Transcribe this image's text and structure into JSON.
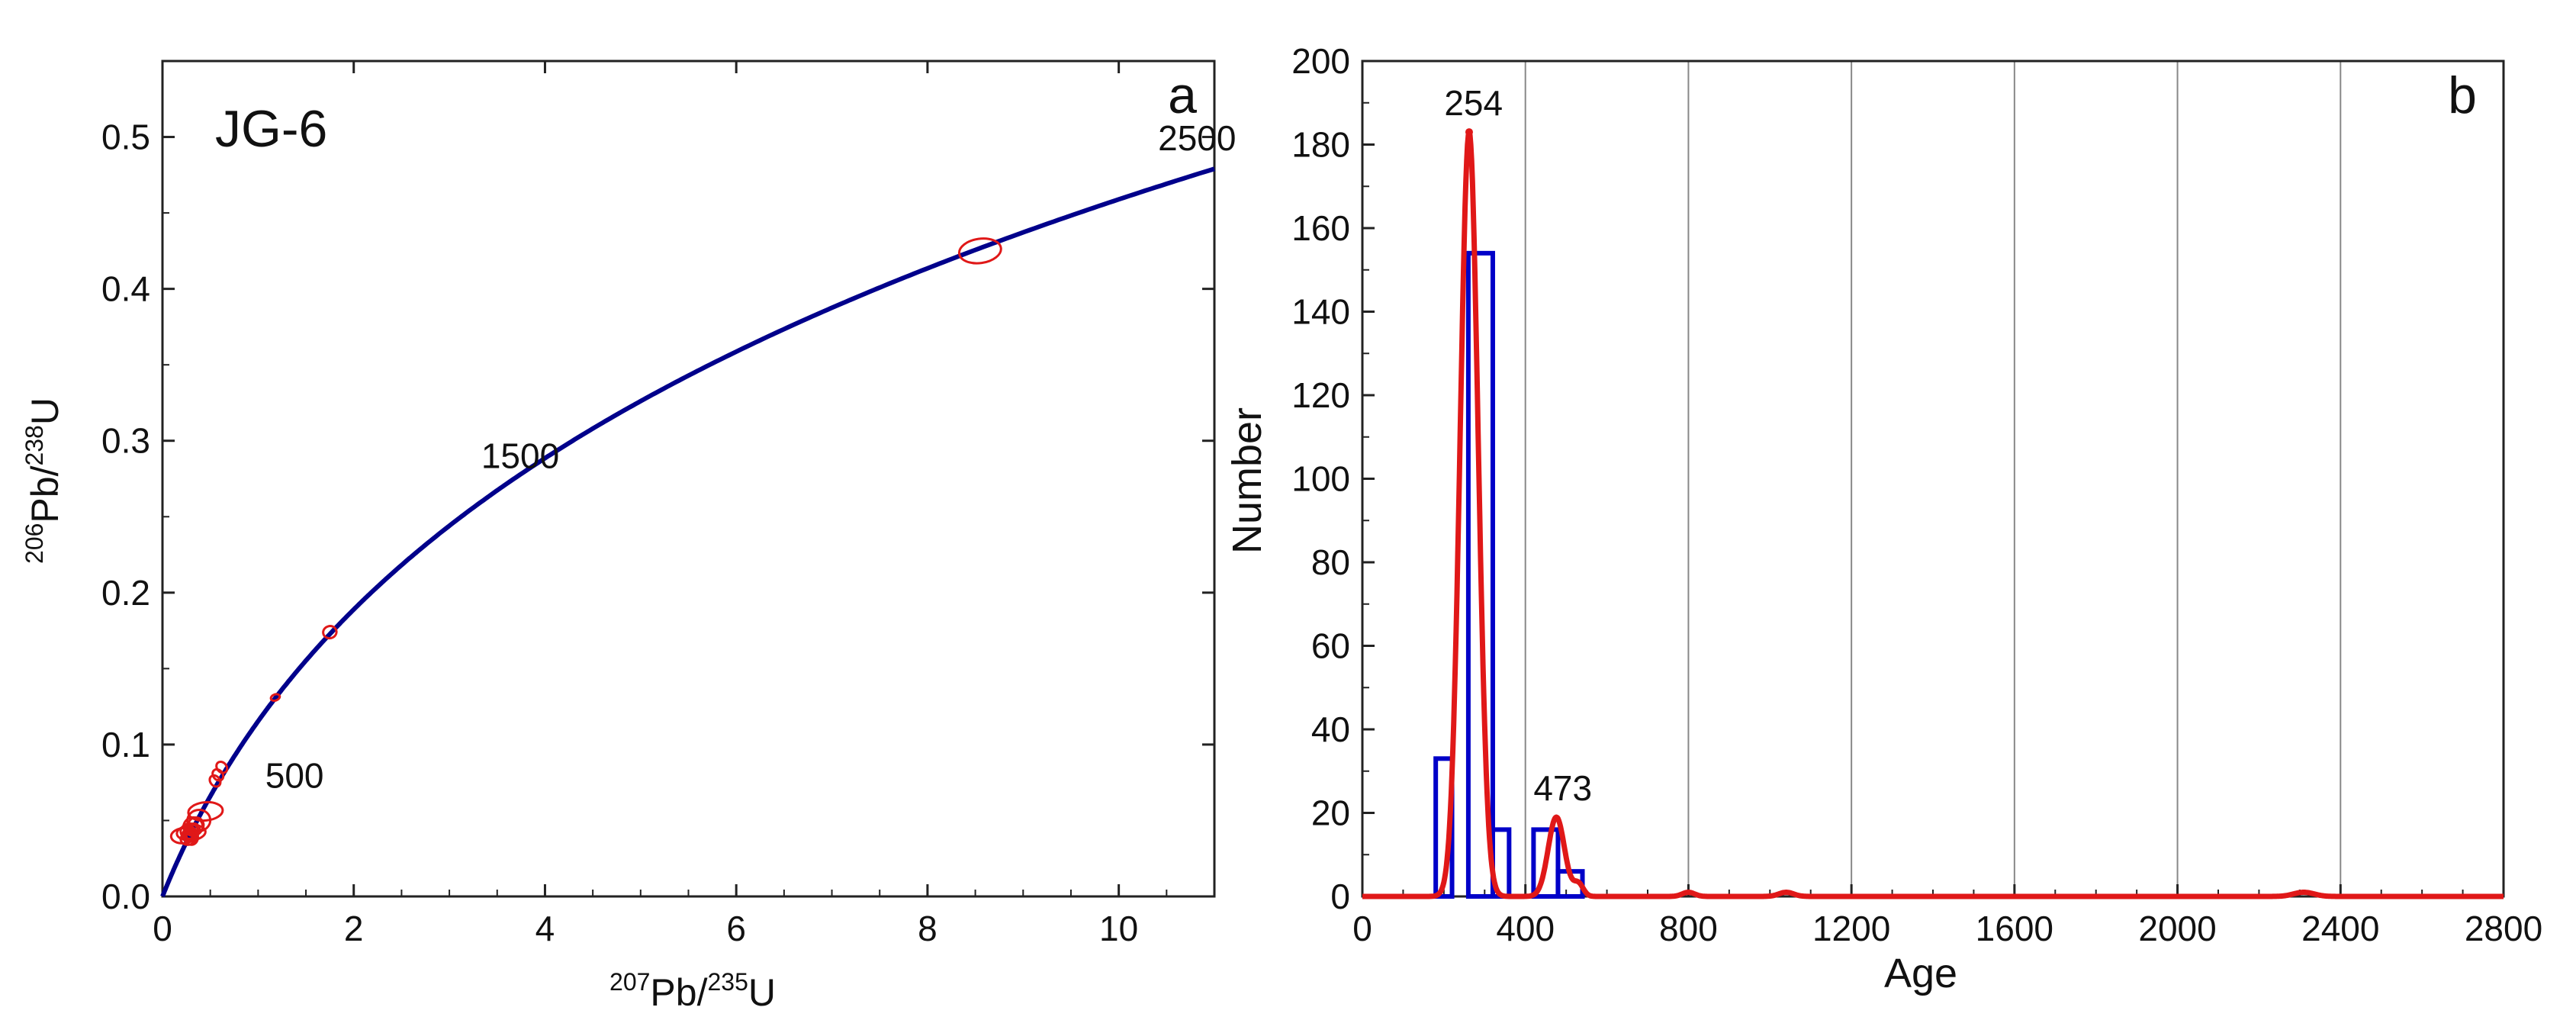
{
  "chart_data": [
    {
      "type": "scatter",
      "panel_label": "a",
      "sample_label": "JG-6",
      "xlabel": {
        "sup1": "207",
        "base1": "Pb/",
        "sup2": "235",
        "base2": "U"
      },
      "ylabel": {
        "sup1": "206",
        "base1": "Pb/",
        "sup2": "238",
        "base2": "U"
      },
      "xlim": [
        0,
        11
      ],
      "ylim": [
        0,
        0.55
      ],
      "xticks": [
        0,
        2,
        4,
        6,
        8,
        10
      ],
      "yticks": [
        0.0,
        0.1,
        0.2,
        0.3,
        0.4,
        0.5
      ],
      "ytick_labels": [
        "0.0",
        "0.1",
        "0.2",
        "0.3",
        "0.4",
        "0.5"
      ],
      "concordia_age_labels": [
        {
          "age_ma": 500,
          "text": "500"
        },
        {
          "age_ma": 1500,
          "text": "1500"
        },
        {
          "age_ma": 2500,
          "text": "2500"
        }
      ],
      "ellipses": [
        {
          "x": 8.55,
          "y": 0.425,
          "rx": 0.22,
          "ry": 0.008,
          "angle": 8
        },
        {
          "x": 1.75,
          "y": 0.174,
          "rx": 0.07,
          "ry": 0.004,
          "angle": 15
        },
        {
          "x": 1.18,
          "y": 0.131,
          "rx": 0.04,
          "ry": 0.002,
          "angle": 20
        },
        {
          "x": 0.62,
          "y": 0.085,
          "rx": 0.05,
          "ry": 0.004,
          "angle": 40
        },
        {
          "x": 0.58,
          "y": 0.08,
          "rx": 0.05,
          "ry": 0.004,
          "angle": 40
        },
        {
          "x": 0.55,
          "y": 0.076,
          "rx": 0.05,
          "ry": 0.004,
          "angle": 40
        },
        {
          "x": 0.45,
          "y": 0.056,
          "rx": 0.18,
          "ry": 0.006,
          "angle": 5
        },
        {
          "x": 0.38,
          "y": 0.05,
          "rx": 0.12,
          "ry": 0.007,
          "angle": 10
        },
        {
          "x": 0.32,
          "y": 0.046,
          "rx": 0.1,
          "ry": 0.006,
          "angle": 10
        },
        {
          "x": 0.3,
          "y": 0.042,
          "rx": 0.15,
          "ry": 0.005,
          "angle": 5
        },
        {
          "x": 0.22,
          "y": 0.04,
          "rx": 0.13,
          "ry": 0.005,
          "angle": 5
        },
        {
          "x": 0.29,
          "y": 0.041,
          "rx": 0.07,
          "ry": 0.005,
          "angle": 10
        },
        {
          "x": 0.3,
          "y": 0.039,
          "rx": 0.07,
          "ry": 0.005,
          "angle": 10
        },
        {
          "x": 0.28,
          "y": 0.043,
          "rx": 0.09,
          "ry": 0.005,
          "angle": 10
        },
        {
          "x": 0.31,
          "y": 0.04,
          "rx": 0.06,
          "ry": 0.004,
          "angle": 10
        },
        {
          "x": 0.27,
          "y": 0.038,
          "rx": 0.08,
          "ry": 0.004,
          "angle": 10
        },
        {
          "x": 0.33,
          "y": 0.044,
          "rx": 0.06,
          "ry": 0.004,
          "angle": 10
        },
        {
          "x": 0.26,
          "y": 0.04,
          "rx": 0.05,
          "ry": 0.004,
          "angle": 10
        },
        {
          "x": 0.35,
          "y": 0.047,
          "rx": 0.08,
          "ry": 0.005,
          "angle": 10
        }
      ],
      "colors": {
        "concordia": "#00008b",
        "ellipse": "#e01818"
      }
    },
    {
      "type": "bar",
      "panel_label": "b",
      "xlabel": "Age",
      "ylabel": "Number",
      "xlim": [
        0,
        2800
      ],
      "ylim": [
        0,
        200
      ],
      "xticks": [
        0,
        400,
        800,
        1200,
        1600,
        2000,
        2400,
        2800
      ],
      "yticks": [
        0,
        20,
        40,
        60,
        80,
        100,
        120,
        140,
        160,
        180,
        200
      ],
      "vgrid": [
        400,
        800,
        1200,
        1600,
        2000,
        2400
      ],
      "bins": [
        {
          "x0": 180,
          "x1": 220,
          "count": 33
        },
        {
          "x0": 220,
          "x1": 260,
          "count": 0
        },
        {
          "x0": 260,
          "x1": 320,
          "count": 154
        },
        {
          "x0": 320,
          "x1": 360,
          "count": 16
        },
        {
          "x0": 420,
          "x1": 480,
          "count": 16
        },
        {
          "x0": 480,
          "x1": 540,
          "count": 6
        }
      ],
      "density_peaks": [
        {
          "mu": 262,
          "sigma": 22,
          "height": 183
        },
        {
          "mu": 476,
          "sigma": 20,
          "height": 19
        },
        {
          "mu": 530,
          "sigma": 12,
          "height": 3
        },
        {
          "mu": 800,
          "sigma": 15,
          "height": 1
        },
        {
          "mu": 1040,
          "sigma": 18,
          "height": 1
        },
        {
          "mu": 2310,
          "sigma": 25,
          "height": 1
        }
      ],
      "peak_labels": [
        {
          "age": 254,
          "text": "254",
          "y": 183
        },
        {
          "age": 473,
          "text": "473",
          "y": 19
        }
      ],
      "colors": {
        "bars": "#0000c8",
        "density": "#e01818",
        "grid": "#888888"
      }
    }
  ]
}
